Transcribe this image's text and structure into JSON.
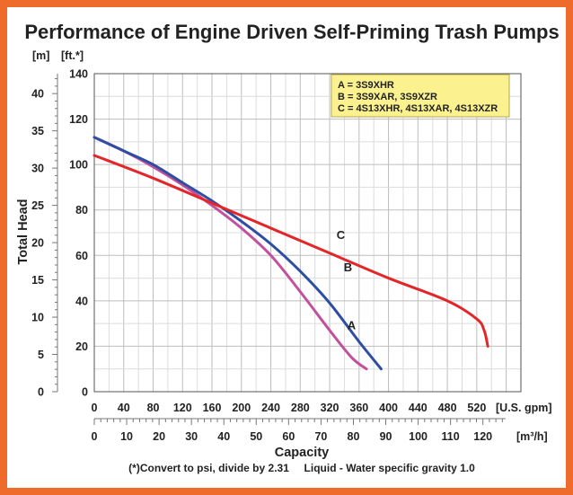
{
  "chart_data": {
    "type": "line",
    "title": "Performance of Engine Driven Self-Priming Trash Pumps",
    "ylabel": "Total Head",
    "xlabel": "Capacity",
    "y_units_m": "[m]",
    "y_units_ft": "[ft.*]",
    "x_units_gpm": "[U.S. gpm]",
    "x_units_m3h": "[m³/h]",
    "ylim_ft": [
      0,
      140
    ],
    "xlim_gpm": [
      0,
      580
    ],
    "y_ft_ticks": [
      "0",
      "20",
      "40",
      "60",
      "80",
      "100",
      "120",
      "140"
    ],
    "y_m_ticks": [
      "0",
      "5",
      "10",
      "15",
      "20",
      "25",
      "30",
      "35",
      "40"
    ],
    "x_gpm_ticks": [
      "0",
      "40",
      "80",
      "120",
      "160",
      "200",
      "240",
      "280",
      "320",
      "360",
      "400",
      "440",
      "480",
      "520"
    ],
    "x_m3h_ticks": [
      "0",
      "10",
      "20",
      "30",
      "40",
      "50",
      "60",
      "70",
      "80",
      "90",
      "100",
      "110",
      "120"
    ],
    "legend": [
      "A = 3S9XHR",
      "B = 3S9XAR, 3S9XZR",
      "C = 4S13XHR, 4S13XAR, 4S13XZR"
    ],
    "legend_position": "top-right",
    "grid": true,
    "series": [
      {
        "name": "A",
        "color": "#c2509e",
        "x": [
          0,
          40,
          80,
          120,
          160,
          200,
          240,
          280,
          320,
          350,
          370
        ],
        "y": [
          112,
          106,
          99,
          91,
          82,
          72,
          60,
          44,
          27,
          15,
          10
        ]
      },
      {
        "name": "B",
        "color": "#2e4ea3",
        "x": [
          0,
          40,
          80,
          120,
          160,
          200,
          240,
          280,
          320,
          360,
          390
        ],
        "y": [
          112,
          106,
          100,
          92,
          84,
          75,
          65,
          53,
          39,
          22,
          10
        ]
      },
      {
        "name": "C",
        "color": "#e2262a",
        "x": [
          0,
          80,
          160,
          240,
          320,
          400,
          480,
          520,
          530,
          535
        ],
        "y": [
          104,
          94,
          83,
          72,
          61,
          50,
          40,
          32,
          27,
          20
        ]
      }
    ]
  },
  "footnote": "(*)Convert to psi, divide by 2.31     Liquid - Water specific gravity 1.0"
}
